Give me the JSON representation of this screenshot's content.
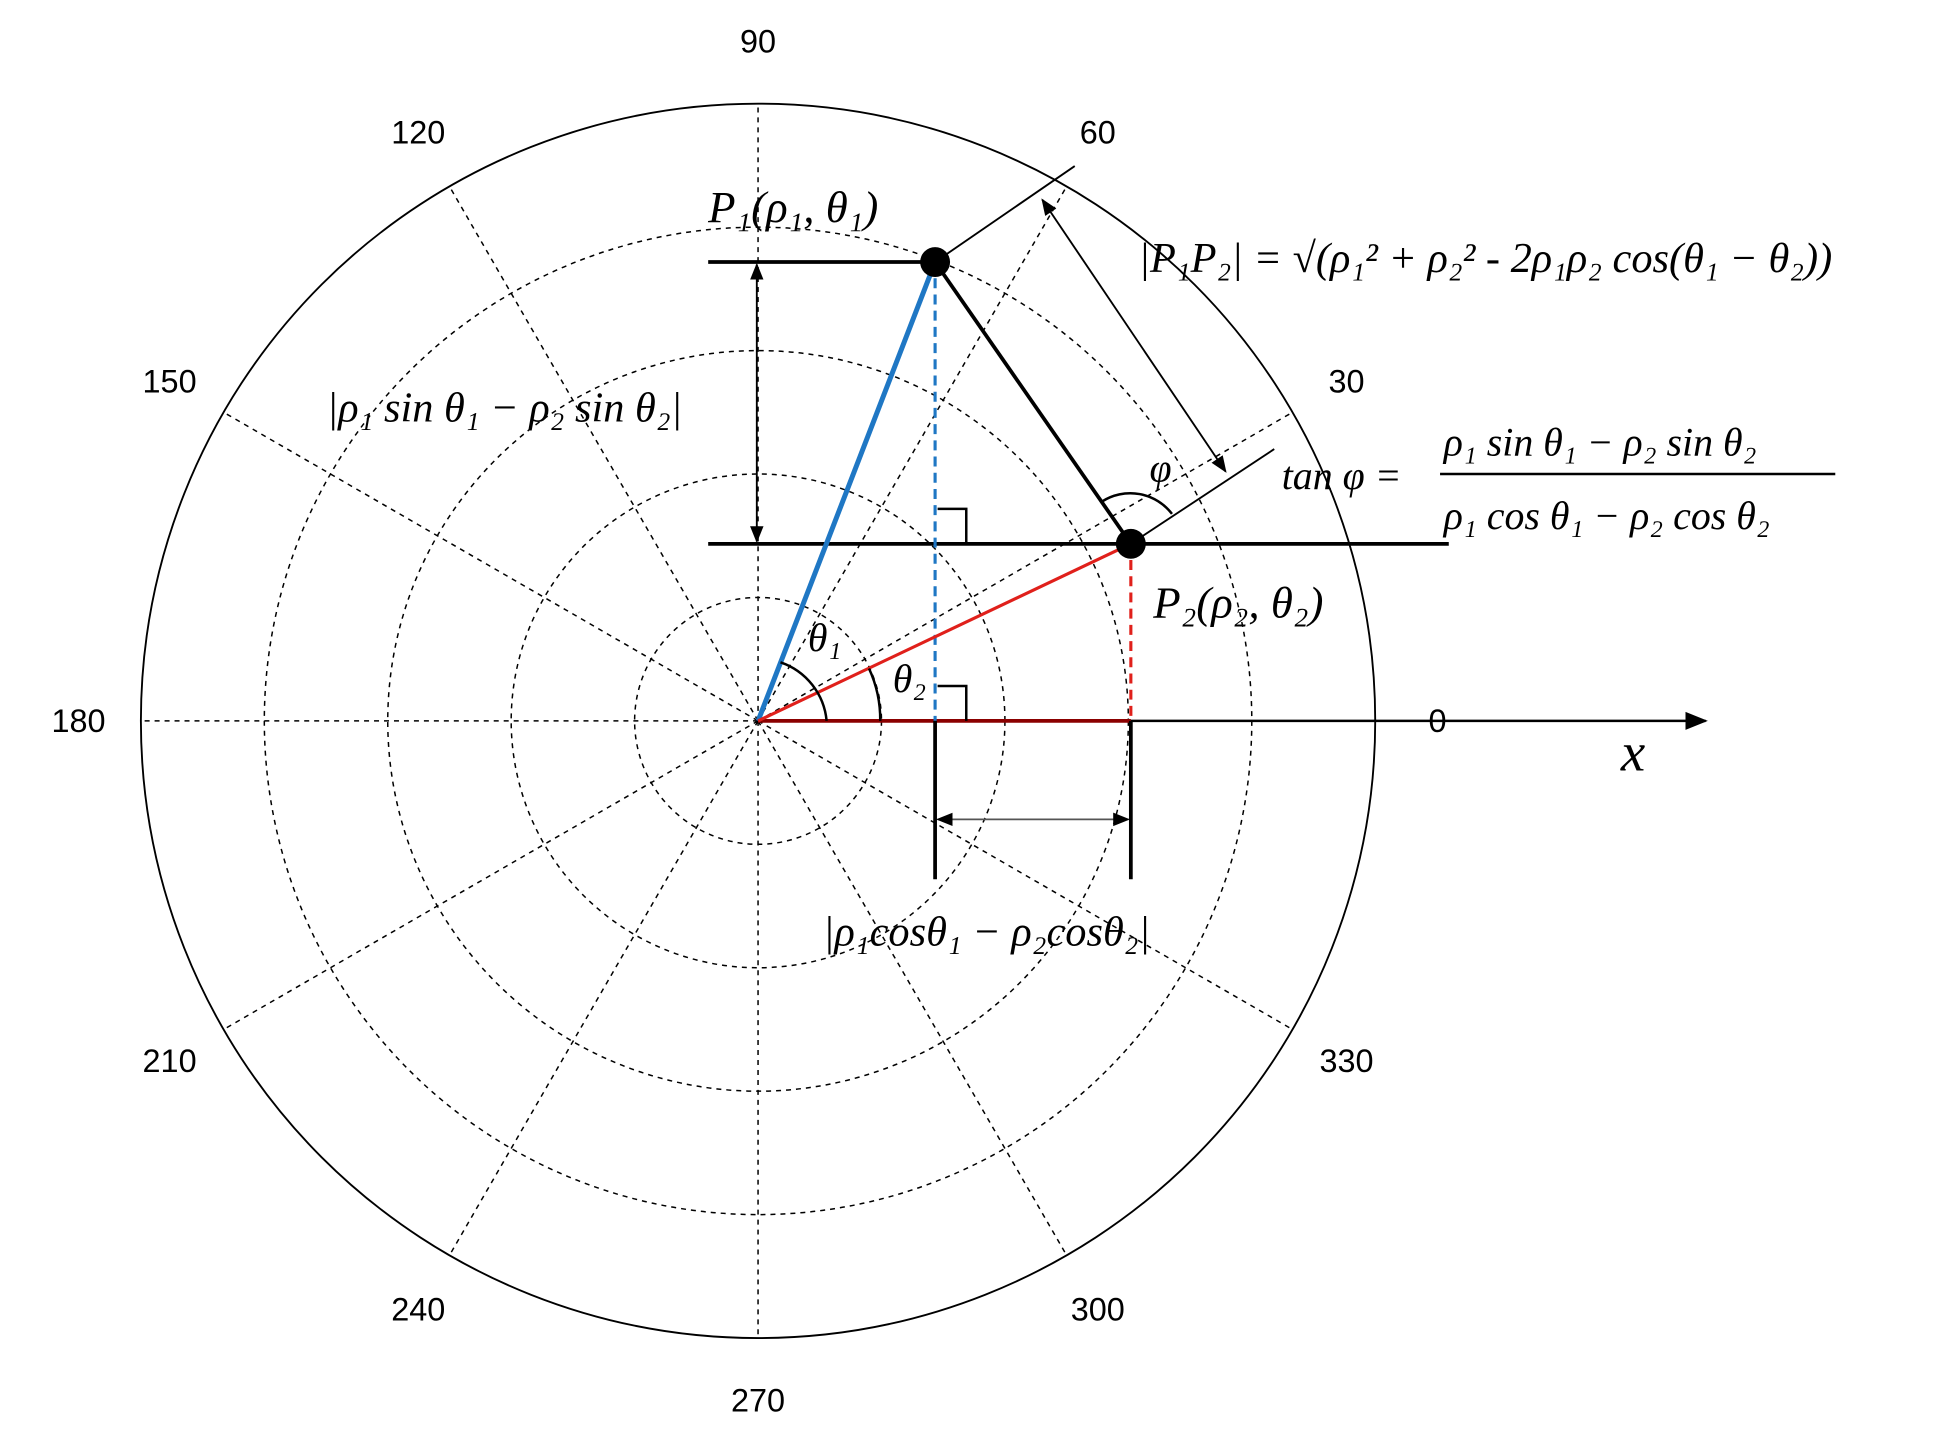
{
  "angle_labels": [
    "0",
    "30",
    "60",
    "90",
    "120",
    "150",
    "180",
    "210",
    "240",
    "270",
    "300",
    "330"
  ],
  "axis_label": "x",
  "points": [
    {
      "label": "P₁(ρ₁, θ₁)"
    },
    {
      "label": "P₂(ρ₂, θ₂)"
    }
  ],
  "angles": [
    "θ₁",
    "θ₂",
    "φ"
  ],
  "formulas": {
    "distance": "|P₁P₂| = √(ρ₁² + ρ₂² - 2ρ₁ρ₂ cos(θ₁ − θ₂))",
    "vertical": "|ρ₁ sin θ₁ − ρ₂ sin θ₂|",
    "horizontal": "|ρ₁cosθ₁ − ρ₂cosθ₂|",
    "tan_lhs": "tan φ =",
    "tan_num": "ρ₁ sin θ₁ − ρ₂ sin θ₂",
    "tan_den": "ρ₁ cos θ₁ − ρ₂ cos θ₂"
  }
}
